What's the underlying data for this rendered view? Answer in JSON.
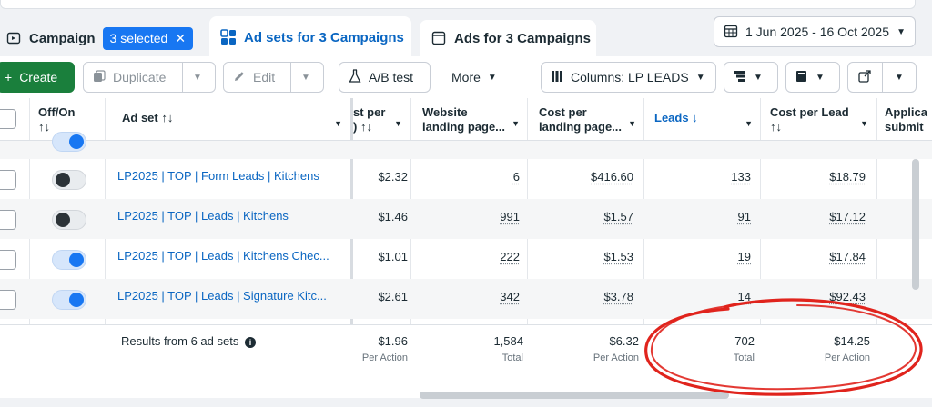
{
  "tabs": {
    "campaign": "Campaign",
    "selected_badge": "3 selected",
    "adsets": "Ad sets for 3 Campaigns",
    "ads": "Ads for 3 Campaigns"
  },
  "date_range": "1 Jun 2025 - 16 Oct 2025",
  "toolbar": {
    "create": "Create",
    "duplicate": "Duplicate",
    "edit": "Edit",
    "ab_test": "A/B test",
    "more": "More",
    "columns": "Columns: LP LEADS"
  },
  "headers": {
    "off_on": "Off/On",
    "sort_icon": "↑↓",
    "ad_set": "Ad set ↑↓",
    "cost_per_partial_1": "st per",
    "cost_per_partial_2": ") ↑↓",
    "website_1": "Website",
    "website_2": "landing page...",
    "cost_lp_1": "Cost per",
    "cost_lp_2": "landing page...",
    "leads": "Leads ↓",
    "cost_lead_1": "Cost per Lead",
    "cost_lead_2": "↑↓",
    "appl_1": "Applica",
    "appl_2": "submit"
  },
  "rows": [
    {
      "name": "LP2025 | TOP | Form Leads | Kitchens",
      "toggle": "off",
      "cost": "$2.32",
      "website": "6",
      "cost_lp": "$416.60",
      "leads": "133",
      "cpl": "$18.79"
    },
    {
      "name": "LP2025 | TOP | Leads | Kitchens",
      "toggle": "off",
      "cost": "$1.46",
      "website": "991",
      "cost_lp": "$1.57",
      "leads": "91",
      "cpl": "$17.12"
    },
    {
      "name": "LP2025 | TOP | Leads | Kitchens Chec...",
      "toggle": "on",
      "cost": "$1.01",
      "website": "222",
      "cost_lp": "$1.53",
      "leads": "19",
      "cpl": "$17.84"
    },
    {
      "name": "LP2025 | TOP | Leads | Signature Kitc...",
      "toggle": "on",
      "cost": "$2.61",
      "website": "342",
      "cost_lp": "$3.78",
      "leads": "14",
      "cpl": "$92.43"
    }
  ],
  "footer": {
    "label": "Results from 6 ad sets",
    "cost": "$1.96",
    "cost_sub": "Per Action",
    "website": "1,584",
    "website_sub": "Total",
    "cost_lp": "$6.32",
    "cost_lp_sub": "Per Action",
    "leads": "702",
    "leads_sub": "Total",
    "cpl": "$14.25",
    "cpl_sub": "Per Action"
  },
  "colors": {
    "accent": "#1877f2",
    "create": "#1a7f3c",
    "annotation": "#e0241d"
  }
}
